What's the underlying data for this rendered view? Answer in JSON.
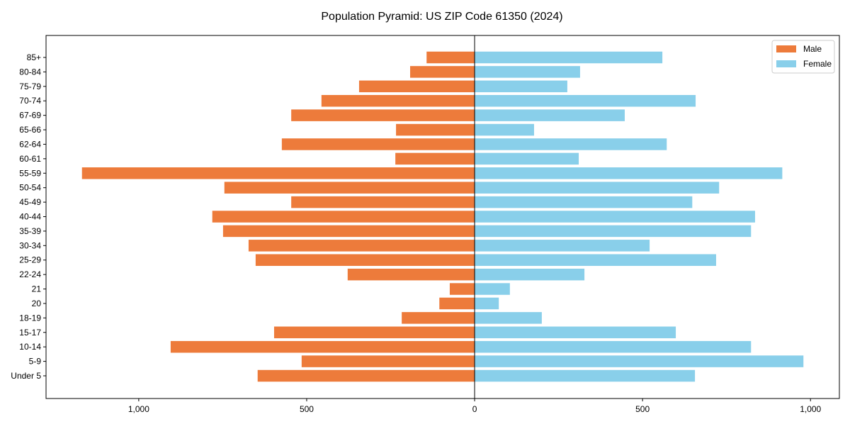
{
  "chart_data": {
    "type": "bar",
    "orientation": "horizontal-pyramid",
    "title": "Population Pyramid: US ZIP Code 61350 (2024)",
    "categories": [
      "85+",
      "80-84",
      "75-79",
      "70-74",
      "67-69",
      "65-66",
      "62-64",
      "60-61",
      "55-59",
      "50-54",
      "45-49",
      "40-44",
      "35-39",
      "30-34",
      "25-29",
      "22-24",
      "21",
      "20",
      "18-19",
      "15-17",
      "10-14",
      "5-9",
      "Under 5"
    ],
    "series": [
      {
        "name": "Male",
        "color": "#ED7B3B",
        "values": [
          143,
          192,
          344,
          456,
          546,
          234,
          574,
          236,
          1169,
          745,
          546,
          781,
          749,
          673,
          652,
          378,
          74,
          105,
          217,
          597,
          905,
          515,
          646
        ]
      },
      {
        "name": "Female",
        "color": "#89CFEA",
        "values": [
          559,
          314,
          276,
          658,
          447,
          177,
          572,
          310,
          916,
          728,
          648,
          835,
          823,
          521,
          719,
          327,
          105,
          72,
          200,
          599,
          823,
          979,
          656
        ]
      }
    ],
    "xticks": [
      {
        "value": -1000,
        "label": "1,000"
      },
      {
        "value": -500,
        "label": "500"
      },
      {
        "value": 0,
        "label": "0"
      },
      {
        "value": 500,
        "label": "500"
      },
      {
        "value": 1000,
        "label": "1,000"
      }
    ],
    "xlim": [
      -1276,
      1086
    ],
    "legend": "top-right",
    "grid": false
  }
}
